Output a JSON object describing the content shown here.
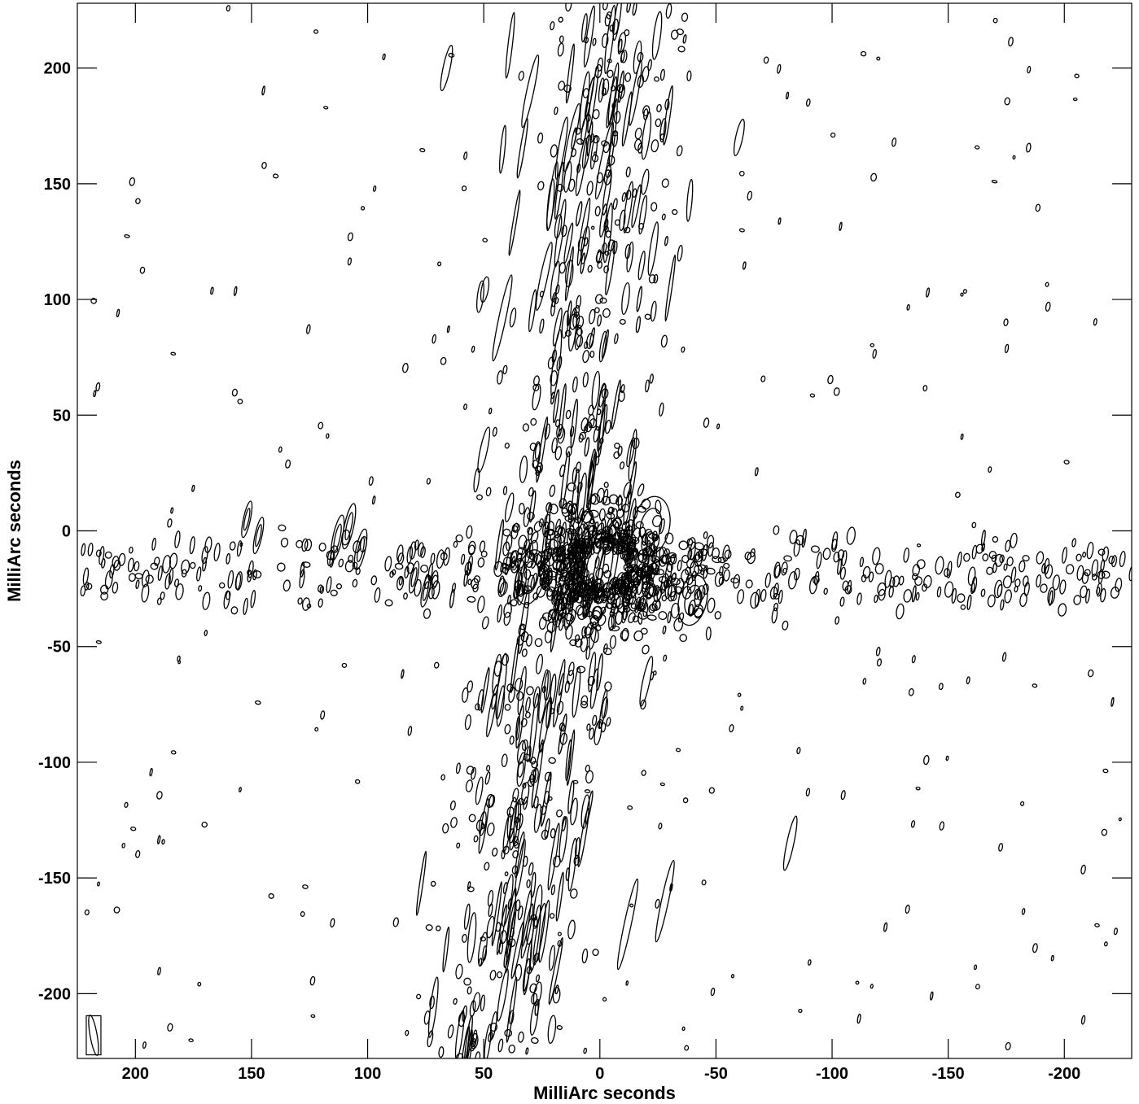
{
  "chart_data": {
    "type": "contour",
    "xlabel": "MilliArc seconds",
    "ylabel": "MilliArc seconds",
    "xlim": [
      225,
      -229
    ],
    "ylim": [
      -228,
      228
    ],
    "x_ticks": [
      200,
      150,
      100,
      50,
      0,
      -50,
      -100,
      -150,
      -200
    ],
    "x_tick_labels": [
      "200",
      "150",
      "100",
      "50",
      "0",
      "-50",
      "-100",
      "-150",
      "-200"
    ],
    "y_ticks": [
      200,
      150,
      100,
      50,
      0,
      -50,
      -100,
      -150,
      -200
    ],
    "y_tick_labels": [
      "200",
      "150",
      "100",
      "50",
      "0",
      "-50",
      "-100",
      "-150",
      "-200"
    ],
    "grid": false,
    "beam": {
      "x": 218,
      "y": -218,
      "major": 12,
      "minor": 3,
      "pa_deg": 10
    },
    "features": [
      {
        "kind": "core",
        "x": -2,
        "y": -18,
        "w": 9,
        "h": 46
      },
      {
        "kind": "core",
        "x": 8,
        "y": -10,
        "w": 7,
        "h": 38
      },
      {
        "kind": "blob",
        "x": -22,
        "y": 2,
        "w": 16,
        "h": 26
      },
      {
        "kind": "blob",
        "x": -40,
        "y": -30,
        "w": 12,
        "h": 22
      },
      {
        "kind": "blob",
        "x": 30,
        "y": -20,
        "w": 12,
        "h": 24
      },
      {
        "kind": "blob",
        "x": 108,
        "y": 2,
        "w": 4,
        "h": 20
      },
      {
        "kind": "blob",
        "x": 113,
        "y": -3,
        "w": 4,
        "h": 20
      },
      {
        "kind": "blob",
        "x": 103,
        "y": -8,
        "w": 4,
        "h": 18
      },
      {
        "kind": "blob",
        "x": 152,
        "y": 5,
        "w": 3,
        "h": 16
      },
      {
        "kind": "blob",
        "x": 147,
        "y": -2,
        "w": 3,
        "h": 16
      },
      {
        "kind": "blob",
        "x": 75,
        "y": -26,
        "w": 3,
        "h": 14
      },
      {
        "kind": "blob",
        "x": 80,
        "y": -20,
        "w": 3,
        "h": 14
      },
      {
        "kind": "streak",
        "x": 42,
        "y": 92,
        "w": 3,
        "h": 38
      },
      {
        "kind": "streak",
        "x": 30,
        "y": 190,
        "w": 3,
        "h": 32
      },
      {
        "kind": "streak",
        "x": 66,
        "y": 200,
        "w": 3,
        "h": 20
      },
      {
        "kind": "streak",
        "x": -2,
        "y": 160,
        "w": 3,
        "h": 34
      },
      {
        "kind": "streak",
        "x": 12,
        "y": 170,
        "w": 3,
        "h": 30
      },
      {
        "kind": "streak",
        "x": -28,
        "y": -160,
        "w": 3,
        "h": 36
      },
      {
        "kind": "streak",
        "x": -12,
        "y": -170,
        "w": 3,
        "h": 40
      },
      {
        "kind": "streak",
        "x": -82,
        "y": -135,
        "w": 3,
        "h": 24
      },
      {
        "kind": "streak",
        "x": 24,
        "y": 110,
        "w": 3,
        "h": 30
      },
      {
        "kind": "streak",
        "x": -60,
        "y": 170,
        "w": 3,
        "h": 16
      },
      {
        "kind": "streak",
        "x": 50,
        "y": 35,
        "w": 3,
        "h": 20
      },
      {
        "kind": "streak",
        "x": -20,
        "y": -65,
        "w": 3,
        "h": 22
      }
    ]
  }
}
